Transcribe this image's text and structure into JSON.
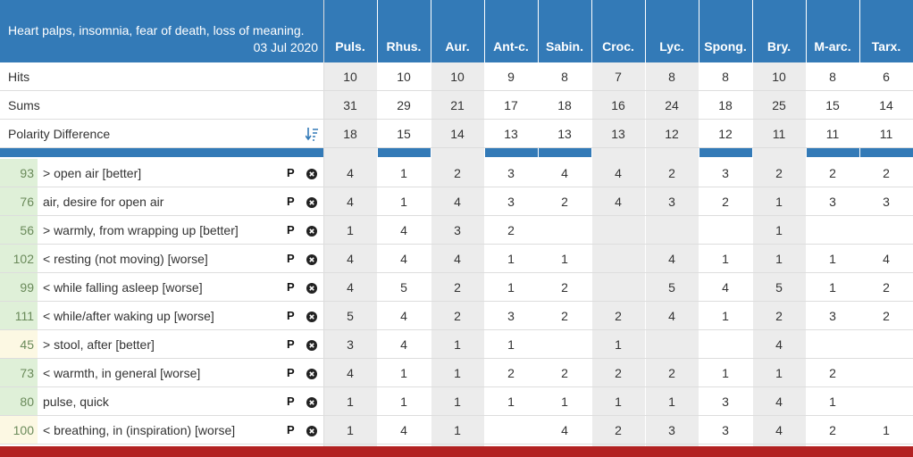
{
  "header": {
    "title": "Heart palps, insomnia, fear of death, loss of meaning.",
    "date": "03 Jul 2020",
    "remedies": [
      "Puls.",
      "Rhus.",
      "Aur.",
      "Ant-c.",
      "Sabin.",
      "Croc.",
      "Lyc.",
      "Spong.",
      "Bry.",
      "M-arc.",
      "Tarx."
    ]
  },
  "summary": [
    {
      "label": "Hits",
      "values": [
        10,
        10,
        10,
        9,
        8,
        7,
        8,
        8,
        10,
        8,
        6
      ]
    },
    {
      "label": "Sums",
      "values": [
        31,
        29,
        21,
        17,
        18,
        16,
        24,
        18,
        25,
        15,
        14
      ]
    },
    {
      "label": "Polarity Difference",
      "values": [
        18,
        15,
        14,
        13,
        13,
        13,
        12,
        12,
        11,
        11,
        11
      ]
    }
  ],
  "rubrics": [
    {
      "number": 93,
      "label": "> open air [better]",
      "tag": "P",
      "color": "#dff0d8",
      "values": [
        4,
        1,
        2,
        3,
        4,
        4,
        2,
        3,
        2,
        2,
        2
      ]
    },
    {
      "number": 76,
      "label": "air, desire for open air",
      "tag": "P",
      "color": "#dff0d8",
      "values": [
        4,
        1,
        4,
        3,
        2,
        4,
        3,
        2,
        1,
        3,
        3
      ]
    },
    {
      "number": 56,
      "label": "> warmly, from wrapping up [better]",
      "tag": "P",
      "color": "#dff0d8",
      "values": [
        1,
        4,
        3,
        2,
        null,
        null,
        null,
        null,
        1,
        null,
        null
      ]
    },
    {
      "number": 102,
      "label": "< resting (not moving) [worse]",
      "tag": "P",
      "color": "#dff0d8",
      "values": [
        4,
        4,
        4,
        1,
        1,
        null,
        4,
        1,
        1,
        1,
        4
      ]
    },
    {
      "number": 99,
      "label": "< while falling asleep [worse]",
      "tag": "P",
      "color": "#dff0d8",
      "values": [
        4,
        5,
        2,
        1,
        2,
        null,
        5,
        4,
        5,
        1,
        2
      ]
    },
    {
      "number": 111,
      "label": "< while/after waking up [worse]",
      "tag": "P",
      "color": "#dff0d8",
      "values": [
        5,
        4,
        2,
        3,
        2,
        2,
        4,
        1,
        2,
        3,
        2
      ]
    },
    {
      "number": 45,
      "label": "> stool, after [better]",
      "tag": "P",
      "color": "#fcf8e3",
      "values": [
        3,
        4,
        1,
        1,
        null,
        1,
        null,
        null,
        4,
        null,
        null
      ]
    },
    {
      "number": 73,
      "label": "< warmth, in general [worse]",
      "tag": "P",
      "color": "#dff0d8",
      "values": [
        4,
        1,
        1,
        2,
        2,
        2,
        2,
        1,
        1,
        2,
        null
      ]
    },
    {
      "number": 80,
      "label": "pulse, quick",
      "tag": "P",
      "color": "#dff0d8",
      "values": [
        1,
        1,
        1,
        1,
        1,
        1,
        1,
        3,
        4,
        1,
        null
      ]
    },
    {
      "number": 100,
      "label": "< breathing, in (inspiration) [worse]",
      "tag": "P",
      "color": "#fcf8e3",
      "values": [
        1,
        4,
        1,
        null,
        4,
        2,
        3,
        3,
        4,
        2,
        1
      ]
    }
  ]
}
